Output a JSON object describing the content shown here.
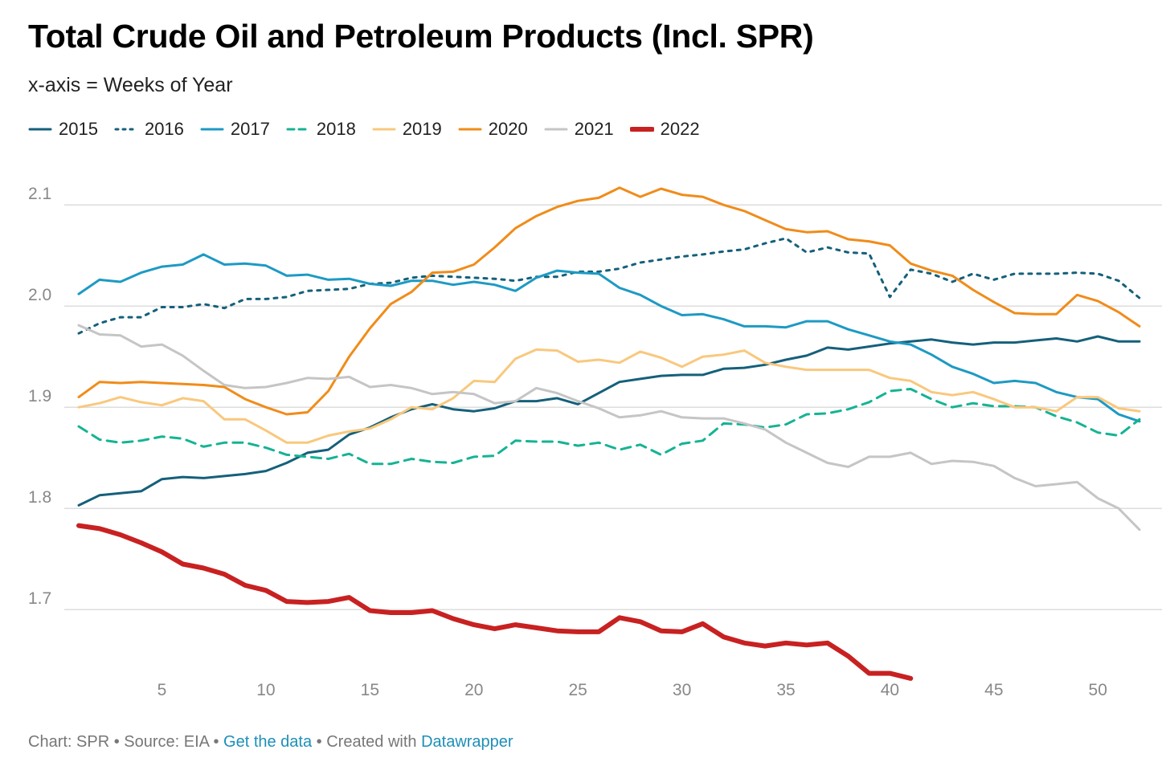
{
  "title": "Total Crude Oil and Petroleum Products (Incl. SPR)",
  "subtitle": "x-axis = Weeks of Year",
  "footer": {
    "chart": "Chart: SPR",
    "sep1": " • ",
    "source": "Source: EIA",
    "sep2": " • ",
    "get_data": "Get the data",
    "sep3": " • ",
    "created": "Created with ",
    "datawrapper": "Datawrapper"
  },
  "chart_data": {
    "type": "line",
    "xlabel": "",
    "ylabel": "",
    "xlim": [
      1,
      52
    ],
    "ylim": [
      1.62,
      2.12
    ],
    "x_ticks": [
      5,
      10,
      15,
      20,
      25,
      30,
      35,
      40,
      45,
      50
    ],
    "y_ticks": [
      1.7,
      1.8,
      1.9,
      2.0,
      2.1
    ],
    "y_tick_labels": [
      "1.7",
      "1.8",
      "1.9",
      "2.0",
      "2.1"
    ],
    "grid": "horizontal",
    "legend_position": "top-left",
    "series": [
      {
        "name": "2015",
        "color": "#15607a",
        "style": "solid",
        "width": 3,
        "values": [
          1.803,
          1.813,
          1.815,
          1.817,
          1.829,
          1.831,
          1.83,
          1.832,
          1.834,
          1.837,
          1.845,
          1.855,
          1.858,
          1.873,
          1.88,
          1.89,
          1.898,
          1.903,
          1.898,
          1.896,
          1.899,
          1.906,
          1.906,
          1.909,
          1.903,
          1.914,
          1.925,
          1.928,
          1.931,
          1.932,
          1.932,
          1.938,
          1.939,
          1.942,
          1.947,
          1.951,
          1.959,
          1.957,
          1.96,
          1.963,
          1.965,
          1.967,
          1.964,
          1.962,
          1.964,
          1.964,
          1.966,
          1.968,
          1.965,
          1.97,
          1.965,
          1.965
        ]
      },
      {
        "name": "2016",
        "color": "#15607a",
        "style": "dotted",
        "width": 3,
        "values": [
          1.973,
          1.983,
          1.989,
          1.989,
          1.999,
          1.999,
          2.002,
          1.998,
          2.007,
          2.007,
          2.009,
          2.015,
          2.016,
          2.017,
          2.022,
          2.023,
          2.028,
          2.03,
          2.029,
          2.028,
          2.027,
          2.025,
          2.029,
          2.029,
          2.034,
          2.034,
          2.037,
          2.043,
          2.046,
          2.049,
          2.051,
          2.054,
          2.056,
          2.062,
          2.067,
          2.053,
          2.058,
          2.053,
          2.052,
          2.009,
          2.036,
          2.032,
          2.024,
          2.032,
          2.026,
          2.032,
          2.032,
          2.032,
          2.033,
          2.032,
          2.025,
          2.008
        ]
      },
      {
        "name": "2017",
        "color": "#1d9ac4",
        "style": "solid",
        "width": 3,
        "values": [
          2.012,
          2.026,
          2.024,
          2.033,
          2.039,
          2.041,
          2.051,
          2.041,
          2.042,
          2.04,
          2.03,
          2.031,
          2.026,
          2.027,
          2.022,
          2.02,
          2.025,
          2.025,
          2.021,
          2.024,
          2.021,
          2.015,
          2.028,
          2.035,
          2.033,
          2.032,
          2.018,
          2.011,
          2.0,
          1.991,
          1.992,
          1.987,
          1.98,
          1.98,
          1.979,
          1.985,
          1.985,
          1.977,
          1.971,
          1.965,
          1.962,
          1.952,
          1.94,
          1.933,
          1.924,
          1.926,
          1.924,
          1.915,
          1.91,
          1.908,
          1.893,
          1.886
        ]
      },
      {
        "name": "2018",
        "color": "#15b394",
        "style": "dashed",
        "width": 3,
        "values": [
          1.881,
          1.868,
          1.865,
          1.867,
          1.871,
          1.869,
          1.861,
          1.865,
          1.865,
          1.86,
          1.853,
          1.851,
          1.849,
          1.854,
          1.844,
          1.844,
          1.849,
          1.846,
          1.845,
          1.851,
          1.852,
          1.867,
          1.866,
          1.866,
          1.862,
          1.865,
          1.858,
          1.863,
          1.853,
          1.864,
          1.867,
          1.884,
          1.883,
          1.88,
          1.883,
          1.893,
          1.894,
          1.898,
          1.905,
          1.916,
          1.918,
          1.908,
          1.9,
          1.904,
          1.901,
          1.901,
          1.9,
          1.891,
          1.885,
          1.875,
          1.872,
          1.888
        ]
      },
      {
        "name": "2019",
        "color": "#f9c87d",
        "style": "solid",
        "width": 3,
        "values": [
          1.9,
          1.904,
          1.91,
          1.905,
          1.902,
          1.909,
          1.906,
          1.888,
          1.888,
          1.877,
          1.865,
          1.865,
          1.872,
          1.876,
          1.879,
          1.888,
          1.9,
          1.898,
          1.909,
          1.926,
          1.925,
          1.948,
          1.957,
          1.956,
          1.945,
          1.947,
          1.944,
          1.955,
          1.949,
          1.94,
          1.95,
          1.952,
          1.956,
          1.944,
          1.94,
          1.937,
          1.937,
          1.937,
          1.937,
          1.929,
          1.926,
          1.915,
          1.912,
          1.915,
          1.908,
          1.9,
          1.9,
          1.896,
          1.91,
          1.91,
          1.899,
          1.896
        ]
      },
      {
        "name": "2020",
        "color": "#f08c1a",
        "style": "solid",
        "width": 3,
        "values": [
          1.91,
          1.925,
          1.924,
          1.925,
          1.924,
          1.923,
          1.922,
          1.92,
          1.908,
          1.9,
          1.893,
          1.895,
          1.916,
          1.95,
          1.978,
          2.002,
          2.014,
          2.033,
          2.034,
          2.041,
          2.058,
          2.077,
          2.089,
          2.098,
          2.104,
          2.107,
          2.117,
          2.108,
          2.116,
          2.11,
          2.108,
          2.1,
          2.094,
          2.085,
          2.076,
          2.073,
          2.074,
          2.066,
          2.064,
          2.06,
          2.042,
          2.035,
          2.03,
          2.016,
          2.004,
          1.993,
          1.992,
          1.992,
          2.011,
          2.005,
          1.994,
          1.98
        ]
      },
      {
        "name": "2021",
        "color": "#c5c5c5",
        "style": "solid",
        "width": 3,
        "values": [
          1.981,
          1.972,
          1.971,
          1.96,
          1.962,
          1.951,
          1.936,
          1.922,
          1.919,
          1.92,
          1.924,
          1.929,
          1.928,
          1.93,
          1.92,
          1.922,
          1.919,
          1.913,
          1.915,
          1.913,
          1.904,
          1.906,
          1.919,
          1.914,
          1.906,
          1.899,
          1.89,
          1.892,
          1.896,
          1.89,
          1.889,
          1.889,
          1.884,
          1.878,
          1.865,
          1.855,
          1.845,
          1.841,
          1.851,
          1.851,
          1.855,
          1.844,
          1.847,
          1.846,
          1.842,
          1.83,
          1.822,
          1.824,
          1.826,
          1.81,
          1.8,
          1.779
        ]
      },
      {
        "name": "2022",
        "color": "#c82121",
        "style": "solid",
        "width": 6,
        "values": [
          1.783,
          1.78,
          1.774,
          1.766,
          1.757,
          1.745,
          1.741,
          1.735,
          1.724,
          1.719,
          1.708,
          1.707,
          1.708,
          1.712,
          1.699,
          1.697,
          1.697,
          1.699,
          1.691,
          1.685,
          1.681,
          1.685,
          1.682,
          1.679,
          1.678,
          1.678,
          1.692,
          1.688,
          1.679,
          1.678,
          1.686,
          1.673,
          1.667,
          1.664,
          1.667,
          1.665,
          1.667,
          1.654,
          1.637,
          1.637,
          1.632
        ]
      }
    ]
  }
}
